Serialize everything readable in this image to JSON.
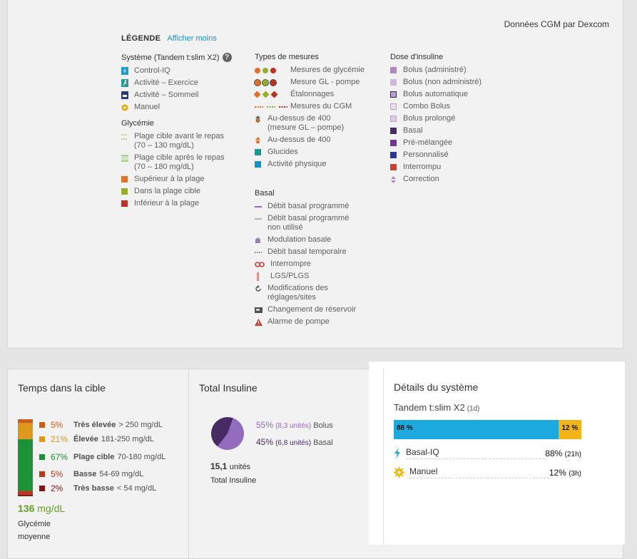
{
  "cgm_source": "Données CGM par Dexcom",
  "legend": {
    "title": "LÉGENDE",
    "toggle_link": "Afficher moins",
    "system": {
      "heading": "Système (Tandem t:slim X2)",
      "help": "?",
      "items": [
        {
          "label": "Control-IQ",
          "icon": "lightning-icon",
          "color": "#1ca3e3"
        },
        {
          "label": "Activité – Exercice",
          "icon": "running-icon",
          "color": "#2aa197"
        },
        {
          "label": "Activité – Sommeil",
          "icon": "sleep-icon",
          "color": "#2d3b78"
        },
        {
          "label": "Manuel",
          "icon": "gear-icon",
          "color": "#f1b400"
        }
      ]
    },
    "glycemia": {
      "heading": "Glycémie",
      "items": [
        {
          "label": "Plage cible avant le repas (70 – 130 mg/dL)",
          "color": "#7cc142",
          "style": "dotted"
        },
        {
          "label": "Plage cible après le repas (70 – 180 mg/dL)",
          "color": "#7cc142",
          "style": "band"
        },
        {
          "label": "Supérieur à la plage",
          "color": "#e8792f"
        },
        {
          "label": "Dans la plage cible",
          "color": "#9fb92e"
        },
        {
          "label": "Inférieur à la plage",
          "color": "#c7352b"
        }
      ]
    },
    "measures": {
      "heading": "Types de mesures",
      "items": [
        {
          "label": "Mesures de glycémie",
          "shape": "dots"
        },
        {
          "label": "Mesure GL - pompe",
          "shape": "ringed-dots"
        },
        {
          "label": "Étalonnages",
          "shape": "diamonds"
        },
        {
          "label": "Mesures du CGM",
          "shape": "dashes"
        },
        {
          "label": "Au-dessus de 400 (mesure GL – pompe)",
          "shape": "arrow-up"
        },
        {
          "label": "Au-dessus de 400",
          "shape": "arrow-up-orange"
        },
        {
          "label": "Glucides",
          "color": "#1aa39c"
        },
        {
          "label": "Activité physique",
          "color": "#169ccf"
        }
      ]
    },
    "basal": {
      "heading": "Basal",
      "items": [
        {
          "label": "Débit basal programmé",
          "icon": "line-icon"
        },
        {
          "label": "Débit basal programmé non utilisé",
          "icon": "line-light-icon"
        },
        {
          "label": "Modulation basale",
          "icon": "bell-icon"
        },
        {
          "label": "Débit basal temporaire",
          "icon": "dotted-line-icon"
        },
        {
          "label": "Interrompre",
          "icon": "infinity-icon"
        },
        {
          "label": "LGS/PLGS",
          "icon": "bar-icon"
        },
        {
          "label": "Modifications des réglages/sites",
          "icon": "rotate-icon"
        },
        {
          "label": "Changement de réservoir",
          "icon": "reservoir-icon"
        },
        {
          "label": "Alarme de pompe",
          "icon": "warning-icon"
        }
      ]
    },
    "insulin": {
      "heading": "Dose d'insuline",
      "items": [
        {
          "label": "Bolus (administré)",
          "color": "#b88fcf"
        },
        {
          "label": "Bolus (non administré)",
          "color": "#d9c5e6"
        },
        {
          "label": "Bolus automatique",
          "color": "#c9a6de"
        },
        {
          "label": "Combo Bolus",
          "color": "#e8d9f0"
        },
        {
          "label": "Bolus prolongé",
          "color": "#d3b8e4"
        },
        {
          "label": "Basal",
          "color": "#4a2e6b"
        },
        {
          "label": "Pré-mélangée",
          "color": "#7a3b9c"
        },
        {
          "label": "Personnalisé",
          "color": "#2c3b9c"
        },
        {
          "label": "Interrompu",
          "color": "#d9463b"
        },
        {
          "label": "Correction",
          "color": "#b88fcf"
        }
      ]
    }
  },
  "time_in_range": {
    "title": "Temps dans la cible",
    "rows": [
      {
        "pct": "5%",
        "label": "Très élevée",
        "range": "> 250 mg/dL",
        "color": "#d9641c"
      },
      {
        "pct": "21%",
        "label": "Élevée",
        "range": "181-250 mg/dL",
        "color": "#e8a21c"
      },
      {
        "pct": "67%",
        "label": "Plage cible",
        "range": "70-180 mg/dL",
        "color": "#1e9a3a"
      },
      {
        "pct": "5%",
        "label": "Basse",
        "range": "54-69 mg/dL",
        "color": "#c43a22"
      },
      {
        "pct": "2%",
        "label": "Très basse",
        "range": "< 54 mg/dL",
        "color": "#8a1a12"
      }
    ],
    "values": [
      5,
      21,
      67,
      5,
      2
    ],
    "average_value": "136",
    "average_unit": "mg/dL",
    "average_label_1": "Glycémie",
    "average_label_2": "moyenne"
  },
  "total_insulin": {
    "title": "Total Insuline",
    "bolus_pct": "55%",
    "bolus_units": "(8,3 unités)",
    "bolus_label": "Bolus",
    "basal_pct": "45%",
    "basal_units": "(6,8 unités)",
    "basal_label": "Basal",
    "bolus_value": 55,
    "basal_value": 45,
    "bolus_color": "#9b72c8",
    "basal_color": "#4a2e6b",
    "total_value": "15,1",
    "total_unit": "unités",
    "total_label": "Total Insuline"
  },
  "system_details": {
    "title": "Détails du système",
    "device": "Tandem t:slim X2",
    "days": "(1d)",
    "bar": [
      {
        "label": "88 %",
        "value": 88,
        "color": "#1ca9de"
      },
      {
        "label": "12 %",
        "value": 12,
        "color": "#f2b418"
      }
    ],
    "items": [
      {
        "label": "Basal-IQ",
        "pct": "88%",
        "hours": "(21h)",
        "icon": "lightning-icon"
      },
      {
        "label": "Manuel",
        "pct": "12%",
        "hours": "(3h)",
        "icon": "gear-icon"
      }
    ]
  }
}
